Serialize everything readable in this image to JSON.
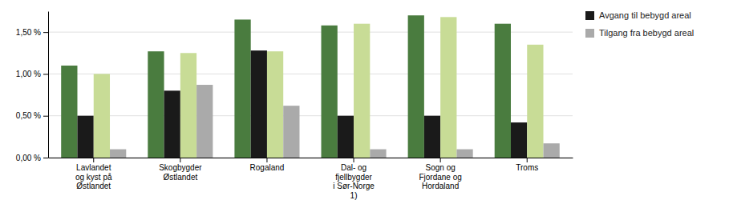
{
  "chart_data": {
    "type": "bar",
    "categories": [
      "Lavlandet\nog kyst på\nØstlandet",
      "Skogbygder\nØstlandet",
      "Rogaland",
      "Dal- og\nfjellbygder\ni Sør-Norge\n1)",
      "Sogn og\nFjordane og\nHordaland",
      "Troms"
    ],
    "series": [
      {
        "color": "#4a7c3f",
        "values": [
          1.1,
          1.27,
          1.65,
          1.58,
          1.7,
          1.6
        ]
      },
      {
        "name": "Avgang til bebygd areal",
        "color": "#1a1a1a",
        "values": [
          0.5,
          0.8,
          1.28,
          0.5,
          0.5,
          0.42
        ]
      },
      {
        "color": "#c8dc96",
        "values": [
          1.0,
          1.25,
          1.27,
          1.6,
          1.68,
          1.35
        ]
      },
      {
        "name": "Tilgang fra bebygd areal",
        "color": "#aaaaaa",
        "values": [
          0.1,
          0.87,
          0.62,
          0.1,
          0.1,
          0.17
        ]
      }
    ],
    "ylim": [
      0,
      1.75
    ],
    "yticks": [
      {
        "value": 0,
        "label": "0,00 %"
      },
      {
        "value": 0.5,
        "label": "0,50 %"
      },
      {
        "value": 1.0,
        "label": "1,00 %"
      },
      {
        "value": 1.5,
        "label": "1,50 %"
      }
    ],
    "grid": true,
    "legend": "right"
  }
}
